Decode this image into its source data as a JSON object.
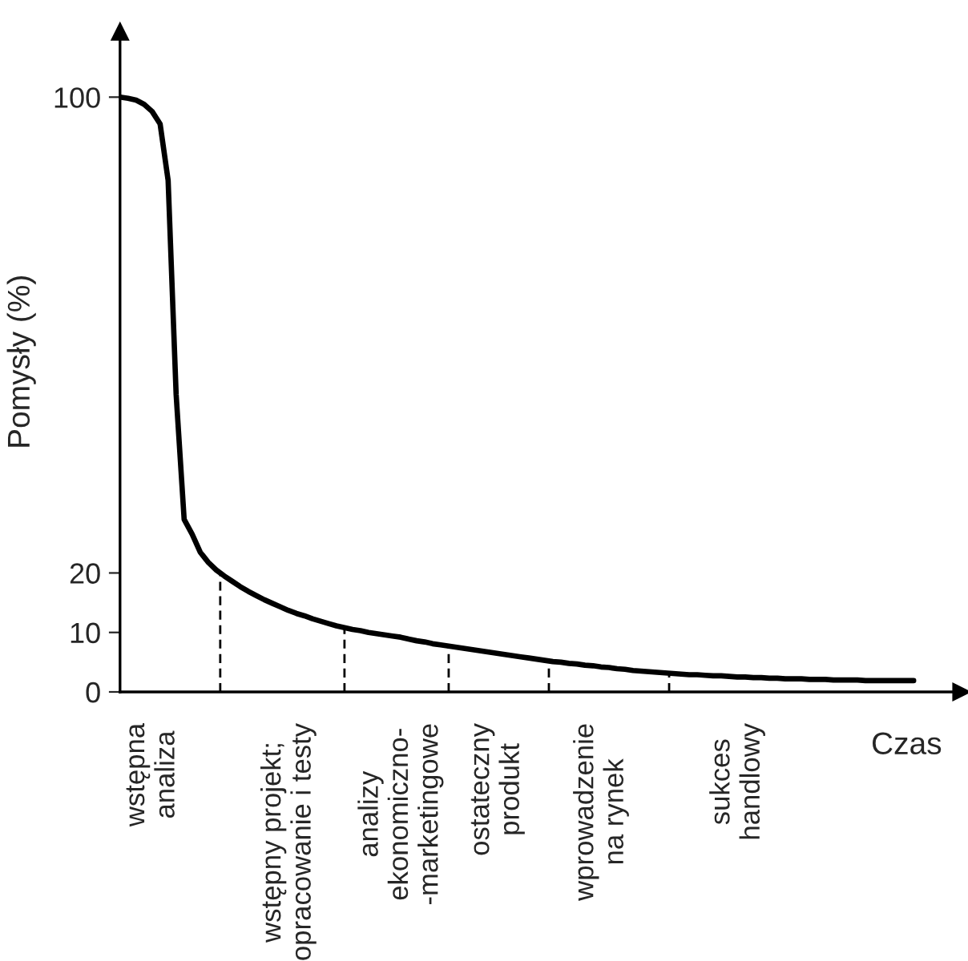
{
  "chart_data": {
    "type": "line",
    "xlabel": "Czas",
    "ylabel": "Pomysły (%)",
    "ylim": [
      0,
      111
    ],
    "yticks": [
      0,
      10,
      20,
      100
    ],
    "categories": [
      null,
      null,
      null,
      null,
      "wstępna\nanaliza",
      null,
      null,
      null,
      null,
      null,
      null,
      null,
      null,
      null,
      null,
      null,
      null,
      null,
      null,
      null,
      null,
      "wstępny projekt;\nopracowanie i testy",
      null,
      null,
      null,
      null,
      null,
      null,
      null,
      null,
      null,
      null,
      null,
      null,
      null,
      "analizy\nekonomiczno-\n-marketingowe",
      null,
      null,
      null,
      null,
      null,
      null,
      null,
      null,
      null,
      null,
      null,
      "ostateczny\nprodukt",
      null,
      null,
      null,
      null,
      null,
      null,
      null,
      null,
      null,
      null,
      null,
      null,
      "wprowadzenie\nna rynek",
      null,
      null,
      null,
      null,
      null,
      null,
      null,
      null,
      null,
      null,
      null,
      null,
      null,
      null,
      null,
      null,
      "sukces\nhandlowy",
      null,
      null,
      null,
      null,
      null,
      null,
      null,
      null,
      null,
      null,
      null,
      null,
      null,
      null,
      null,
      null,
      null,
      null,
      null,
      null,
      null,
      null
    ],
    "series": [
      {
        "color": "#000000",
        "values": [
          100,
          99.8,
          99.5,
          98.8,
          97.6,
          95.5,
          86,
          50,
          29,
          26.5,
          23.5,
          21.8,
          20.5,
          19.5,
          18.6,
          17.7,
          16.9,
          16.2,
          15.5,
          14.9,
          14.3,
          13.7,
          13.2,
          12.8,
          12.3,
          11.9,
          11.5,
          11.1,
          10.8,
          10.5,
          10.3,
          10.0,
          9.8,
          9.6,
          9.4,
          9.2,
          8.9,
          8.6,
          8.4,
          8.1,
          7.9,
          7.7,
          7.5,
          7.3,
          7.1,
          6.9,
          6.7,
          6.5,
          6.3,
          6.1,
          5.9,
          5.7,
          5.5,
          5.3,
          5.1,
          5.0,
          4.8,
          4.7,
          4.5,
          4.4,
          4.2,
          4.1,
          3.9,
          3.8,
          3.6,
          3.5,
          3.4,
          3.3,
          3.2,
          3.1,
          3.0,
          2.9,
          2.9,
          2.8,
          2.7,
          2.7,
          2.6,
          2.5,
          2.5,
          2.4,
          2.4,
          2.3,
          2.3,
          2.2,
          2.2,
          2.2,
          2.1,
          2.1,
          2.1,
          2.0,
          2.0,
          2.0,
          2.0,
          1.9,
          1.9,
          1.9,
          1.9,
          1.9,
          1.9,
          1.9
        ]
      }
    ],
    "marker": "none",
    "line_style": "solid"
  }
}
